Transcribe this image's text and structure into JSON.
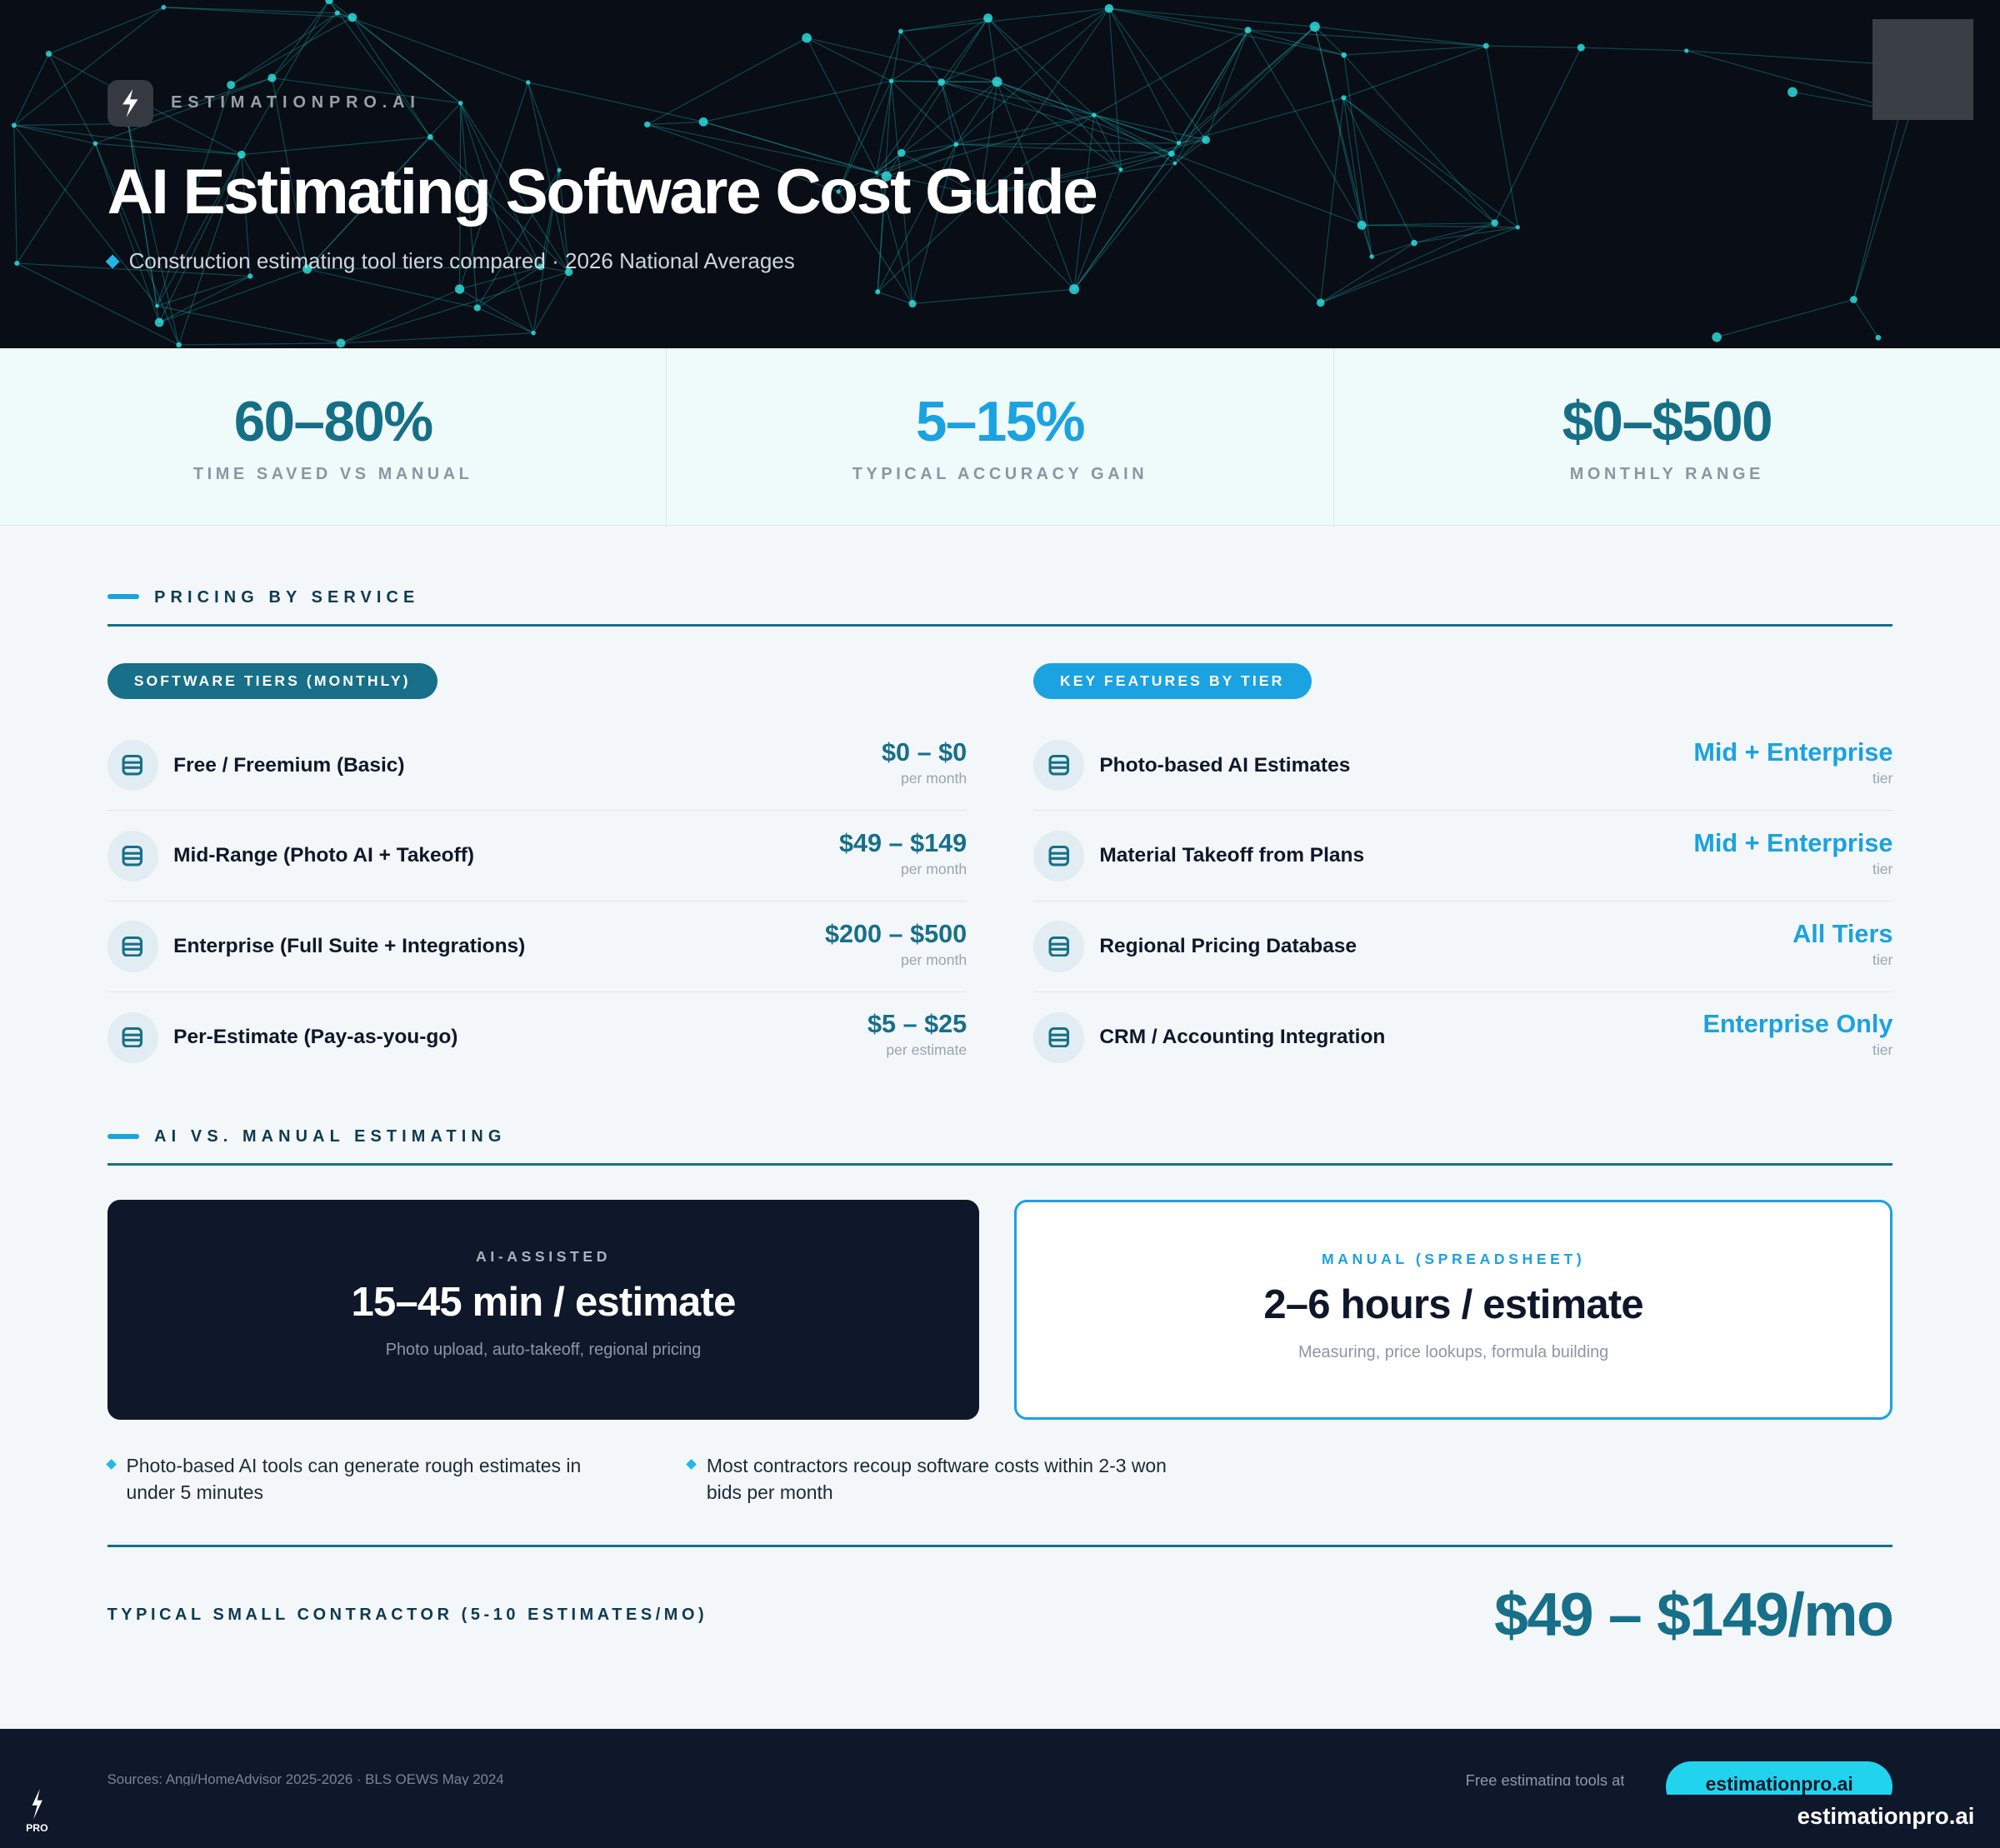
{
  "header": {
    "brand": "ESTIMATIONPRO.AI",
    "title": "AI Estimating Software Cost Guide",
    "subtitle": "Construction estimating tool tiers compared · 2026 National Averages"
  },
  "stats": [
    {
      "value": "60–80%",
      "label": "TIME SAVED VS MANUAL"
    },
    {
      "value": "5–15%",
      "label": "TYPICAL ACCURACY GAIN"
    },
    {
      "value": "$0–$500",
      "label": "MONTHLY RANGE"
    }
  ],
  "pricing": {
    "section_title": "PRICING BY SERVICE",
    "tiers_label": "SOFTWARE TIERS (MONTHLY)",
    "features_label": "KEY FEATURES BY TIER",
    "tiers": [
      {
        "name": "Free / Freemium (Basic)",
        "price": "$0 – $0",
        "unit": "per month"
      },
      {
        "name": "Mid-Range (Photo AI + Takeoff)",
        "price": "$49 – $149",
        "unit": "per month"
      },
      {
        "name": "Enterprise (Full Suite + Integrations)",
        "price": "$200 – $500",
        "unit": "per month"
      },
      {
        "name": "Per-Estimate (Pay-as-you-go)",
        "price": "$5 – $25",
        "unit": "per estimate"
      }
    ],
    "features": [
      {
        "name": "Photo-based AI Estimates",
        "tier": "Mid + Enterprise",
        "unit": "tier"
      },
      {
        "name": "Material Takeoff from Plans",
        "tier": "Mid + Enterprise",
        "unit": "tier"
      },
      {
        "name": "Regional Pricing Database",
        "tier": "All Tiers",
        "unit": "tier"
      },
      {
        "name": "CRM / Accounting Integration",
        "tier": "Enterprise Only",
        "unit": "tier"
      }
    ]
  },
  "comparison": {
    "section_title": "AI VS. MANUAL ESTIMATING",
    "ai": {
      "label": "AI-ASSISTED",
      "value": "15–45 min / estimate",
      "detail": "Photo upload, auto-takeoff, regional pricing"
    },
    "manual": {
      "label": "MANUAL (SPREADSHEET)",
      "value": "2–6 hours / estimate",
      "detail": "Measuring, price lookups, formula building"
    },
    "notes": [
      "Photo-based AI tools can generate rough estimates in under 5 minutes",
      "Most contractors recoup software costs within 2-3 won bids per month"
    ]
  },
  "total": {
    "label": "TYPICAL SMALL CONTRACTOR (5-10 ESTIMATES/MO)",
    "value": "$49 – $149/mo"
  },
  "footer": {
    "sources": "Sources: Angi/HomeAdvisor 2025-2026 · BLS OEWS May 2024",
    "cta_text": "Free estimating tools at",
    "cta_button": "estimationpro.ai",
    "logo_text": "PRO",
    "url": "estimationpro.ai"
  },
  "colors": {
    "primary": "#176f89",
    "accent": "#1ba2e0",
    "dark": "#0f172a",
    "cyan": "#22d3ee"
  }
}
